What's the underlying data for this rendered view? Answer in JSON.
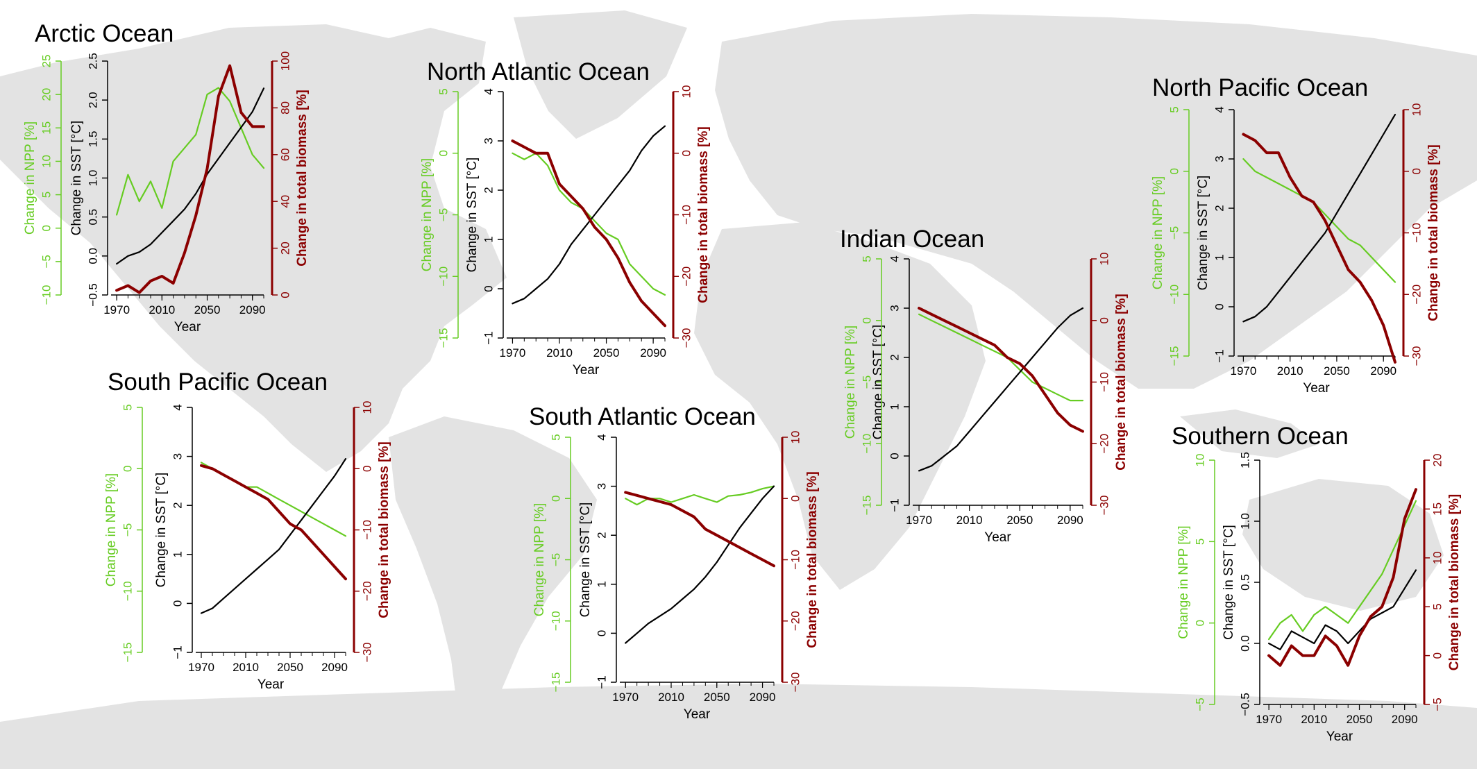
{
  "colors": {
    "npp": "#66cc22",
    "sst": "#000000",
    "biomass": "#8b0000",
    "land": "#e3e3e3"
  },
  "chart_data": [
    {
      "type": "line",
      "title": "Arctic Ocean",
      "xlabel": "Year",
      "xlim": [
        1965,
        2100
      ],
      "xticks": [
        1970,
        2010,
        2050,
        2090
      ],
      "axes": {
        "npp": {
          "label": "Change in NPP [%]",
          "ylim": [
            -10,
            25
          ],
          "ticks": [
            -10,
            -5,
            0,
            5,
            10,
            15,
            20,
            25
          ]
        },
        "sst": {
          "label": "Change in SST [°C]",
          "ylim": [
            -0.5,
            2.5
          ],
          "ticks": [
            -0.5,
            0.0,
            0.5,
            1.0,
            1.5,
            2.0,
            2.5
          ]
        },
        "biomass": {
          "label": "Change in total biomass [%]",
          "ylim": [
            0,
            100
          ],
          "ticks": [
            0,
            20,
            40,
            60,
            80,
            100
          ]
        }
      },
      "series": [
        {
          "axis": "npp",
          "x": [
            1970,
            1980,
            1990,
            2000,
            2010,
            2020,
            2030,
            2040,
            2050,
            2060,
            2070,
            2080,
            2090,
            2100
          ],
          "values": [
            2,
            8,
            4,
            7,
            3,
            10,
            12,
            14,
            20,
            21,
            19,
            15,
            11,
            9
          ]
        },
        {
          "axis": "sst",
          "x": [
            1970,
            1980,
            1990,
            2000,
            2010,
            2020,
            2030,
            2040,
            2050,
            2060,
            2070,
            2080,
            2090,
            2100
          ],
          "values": [
            -0.1,
            0.0,
            0.05,
            0.15,
            0.3,
            0.45,
            0.6,
            0.8,
            1.05,
            1.25,
            1.45,
            1.65,
            1.85,
            2.15
          ]
        },
        {
          "axis": "biomass",
          "x": [
            1970,
            1980,
            1990,
            2000,
            2010,
            2020,
            2030,
            2040,
            2050,
            2060,
            2070,
            2080,
            2090,
            2100
          ],
          "values": [
            2,
            4,
            1,
            6,
            8,
            5,
            18,
            34,
            54,
            85,
            98,
            78,
            72,
            72
          ]
        }
      ]
    },
    {
      "type": "line",
      "title": "North Atlantic Ocean",
      "xlabel": "Year",
      "xlim": [
        1965,
        2100
      ],
      "xticks": [
        1970,
        2010,
        2050,
        2090
      ],
      "axes": {
        "npp": {
          "label": "Change in NPP [%]",
          "ylim": [
            -15,
            5
          ],
          "ticks": [
            -15,
            -10,
            -5,
            0,
            5
          ]
        },
        "sst": {
          "label": "Change in SST [°C]",
          "ylim": [
            -1,
            4
          ],
          "ticks": [
            -1,
            0,
            1,
            2,
            3,
            4
          ]
        },
        "biomass": {
          "label": "Change in total biomass [%]",
          "ylim": [
            -30,
            10
          ],
          "ticks": [
            -30,
            -20,
            -10,
            0,
            10
          ]
        }
      },
      "series": [
        {
          "axis": "npp",
          "x": [
            1970,
            1980,
            1990,
            2000,
            2010,
            2020,
            2030,
            2040,
            2050,
            2060,
            2070,
            2080,
            2090,
            2100
          ],
          "values": [
            0,
            -0.5,
            0,
            -1,
            -3,
            -4,
            -4.5,
            -5.5,
            -6.5,
            -7,
            -9,
            -10,
            -11,
            -11.5
          ]
        },
        {
          "axis": "sst",
          "x": [
            1970,
            1980,
            1990,
            2000,
            2010,
            2020,
            2030,
            2040,
            2050,
            2060,
            2070,
            2080,
            2090,
            2100
          ],
          "values": [
            -0.3,
            -0.2,
            0.0,
            0.2,
            0.5,
            0.9,
            1.2,
            1.5,
            1.8,
            2.1,
            2.4,
            2.8,
            3.1,
            3.3
          ]
        },
        {
          "axis": "biomass",
          "x": [
            1970,
            1980,
            1990,
            2000,
            2010,
            2020,
            2030,
            2040,
            2050,
            2060,
            2070,
            2080,
            2090,
            2100
          ],
          "values": [
            2,
            1,
            0,
            0,
            -5,
            -7,
            -9,
            -12,
            -14,
            -17,
            -21,
            -24,
            -26,
            -28
          ]
        }
      ]
    },
    {
      "type": "line",
      "title": "North Pacific Ocean",
      "xlabel": "Year",
      "xlim": [
        1965,
        2100
      ],
      "xticks": [
        1970,
        2010,
        2050,
        2090
      ],
      "axes": {
        "npp": {
          "label": "Change in NPP [%]",
          "ylim": [
            -15,
            5
          ],
          "ticks": [
            -15,
            -10,
            -5,
            0,
            5
          ]
        },
        "sst": {
          "label": "Change in SST [°C]",
          "ylim": [
            -1,
            4
          ],
          "ticks": [
            -1,
            0,
            1,
            2,
            3,
            4
          ]
        },
        "biomass": {
          "label": "Change in total biomass [%]",
          "ylim": [
            -30,
            10
          ],
          "ticks": [
            -30,
            -20,
            -10,
            0,
            10
          ]
        }
      },
      "series": [
        {
          "axis": "npp",
          "x": [
            1970,
            1980,
            1990,
            2000,
            2010,
            2020,
            2030,
            2040,
            2050,
            2060,
            2070,
            2080,
            2090,
            2100
          ],
          "values": [
            1,
            0,
            -0.5,
            -1,
            -1.5,
            -2,
            -2.5,
            -3.5,
            -4.5,
            -5.5,
            -6,
            -7,
            -8,
            -9
          ]
        },
        {
          "axis": "sst",
          "x": [
            1970,
            1980,
            1990,
            2000,
            2010,
            2020,
            2030,
            2040,
            2050,
            2060,
            2070,
            2080,
            2090,
            2100
          ],
          "values": [
            -0.3,
            -0.2,
            0.0,
            0.3,
            0.6,
            0.9,
            1.2,
            1.5,
            1.9,
            2.3,
            2.7,
            3.1,
            3.5,
            3.9
          ]
        },
        {
          "axis": "biomass",
          "x": [
            1970,
            1980,
            1990,
            2000,
            2010,
            2020,
            2030,
            2040,
            2050,
            2060,
            2070,
            2080,
            2090,
            2100
          ],
          "values": [
            6,
            5,
            3,
            3,
            -1,
            -4,
            -5,
            -8,
            -12,
            -16,
            -18,
            -21,
            -25,
            -31
          ]
        }
      ]
    },
    {
      "type": "line",
      "title": "Indian Ocean",
      "xlabel": "Year",
      "xlim": [
        1965,
        2100
      ],
      "xticks": [
        1970,
        2010,
        2050,
        2090
      ],
      "axes": {
        "npp": {
          "label": "Change in NPP [%]",
          "ylim": [
            -15,
            5
          ],
          "ticks": [
            -15,
            -10,
            -5,
            0,
            5
          ]
        },
        "sst": {
          "label": "Change in SST [°C]",
          "ylim": [
            -1,
            4
          ],
          "ticks": [
            -1,
            0,
            1,
            2,
            3,
            4
          ]
        },
        "biomass": {
          "label": "Change in total biomass [%]",
          "ylim": [
            -30,
            10
          ],
          "ticks": [
            -30,
            -20,
            -10,
            0,
            10
          ]
        }
      },
      "series": [
        {
          "axis": "npp",
          "x": [
            1970,
            1980,
            1990,
            2000,
            2010,
            2020,
            2030,
            2040,
            2050,
            2060,
            2070,
            2080,
            2090,
            2100
          ],
          "values": [
            0.5,
            0,
            -0.5,
            -1,
            -1.5,
            -2,
            -2.5,
            -3,
            -4,
            -5,
            -5.5,
            -6,
            -6.5,
            -6.5
          ]
        },
        {
          "axis": "sst",
          "x": [
            1970,
            1980,
            1990,
            2000,
            2010,
            2020,
            2030,
            2040,
            2050,
            2060,
            2070,
            2080,
            2090,
            2100
          ],
          "values": [
            -0.3,
            -0.2,
            0.0,
            0.2,
            0.5,
            0.8,
            1.1,
            1.4,
            1.7,
            2.0,
            2.3,
            2.6,
            2.85,
            3.0
          ]
        },
        {
          "axis": "biomass",
          "x": [
            1970,
            1980,
            1990,
            2000,
            2010,
            2020,
            2030,
            2040,
            2050,
            2060,
            2070,
            2080,
            2090,
            2100
          ],
          "values": [
            2,
            1,
            0,
            -1,
            -2,
            -3,
            -4,
            -6,
            -7,
            -9,
            -12,
            -15,
            -17,
            -18
          ]
        }
      ]
    },
    {
      "type": "line",
      "title": "South Pacific Ocean",
      "xlabel": "Year",
      "xlim": [
        1965,
        2100
      ],
      "xticks": [
        1970,
        2010,
        2050,
        2090
      ],
      "axes": {
        "npp": {
          "label": "Change in NPP [%]",
          "ylim": [
            -15,
            5
          ],
          "ticks": [
            -15,
            -10,
            -5,
            0,
            5
          ]
        },
        "sst": {
          "label": "Change in SST [°C]",
          "ylim": [
            -1,
            4
          ],
          "ticks": [
            -1,
            0,
            1,
            2,
            3,
            4
          ]
        },
        "biomass": {
          "label": "Change in total biomass [%]",
          "ylim": [
            -30,
            10
          ],
          "ticks": [
            -30,
            -20,
            -10,
            0,
            10
          ]
        }
      },
      "series": [
        {
          "axis": "npp",
          "x": [
            1970,
            1980,
            1990,
            2000,
            2010,
            2020,
            2030,
            2040,
            2050,
            2060,
            2070,
            2080,
            2090,
            2100
          ],
          "values": [
            0.5,
            0,
            -0.5,
            -1,
            -1.5,
            -1.5,
            -2,
            -2.5,
            -3,
            -3.5,
            -4,
            -4.5,
            -5,
            -5.5
          ]
        },
        {
          "axis": "sst",
          "x": [
            1970,
            1980,
            1990,
            2000,
            2010,
            2020,
            2030,
            2040,
            2050,
            2060,
            2070,
            2080,
            2090,
            2100
          ],
          "values": [
            -0.2,
            -0.1,
            0.1,
            0.3,
            0.5,
            0.7,
            0.9,
            1.1,
            1.4,
            1.7,
            2.0,
            2.3,
            2.6,
            2.95
          ]
        },
        {
          "axis": "biomass",
          "x": [
            1970,
            1980,
            1990,
            2000,
            2010,
            2020,
            2030,
            2040,
            2050,
            2060,
            2070,
            2080,
            2090,
            2100
          ],
          "values": [
            0.5,
            0,
            -1,
            -2,
            -3,
            -4,
            -5,
            -7,
            -9,
            -10,
            -12,
            -14,
            -16,
            -18
          ]
        }
      ]
    },
    {
      "type": "line",
      "title": "South Atlantic Ocean",
      "xlabel": "Year",
      "xlim": [
        1965,
        2100
      ],
      "xticks": [
        1970,
        2010,
        2050,
        2090
      ],
      "axes": {
        "npp": {
          "label": "Change in NPP [%]",
          "ylim": [
            -15,
            5
          ],
          "ticks": [
            -15,
            -10,
            -5,
            0,
            5
          ]
        },
        "sst": {
          "label": "Change in SST [°C]",
          "ylim": [
            -1,
            4
          ],
          "ticks": [
            -1,
            0,
            1,
            2,
            3,
            4
          ]
        },
        "biomass": {
          "label": "Change in total biomass [%]",
          "ylim": [
            -30,
            10
          ],
          "ticks": [
            -30,
            -20,
            -10,
            0,
            10
          ]
        }
      },
      "series": [
        {
          "axis": "npp",
          "x": [
            1970,
            1980,
            1990,
            2000,
            2010,
            2020,
            2030,
            2040,
            2050,
            2060,
            2070,
            2080,
            2090,
            2100
          ],
          "values": [
            0,
            -0.5,
            0,
            0,
            -0.3,
            0,
            0.3,
            0,
            -0.3,
            0.2,
            0.3,
            0.5,
            0.8,
            1.0
          ]
        },
        {
          "axis": "sst",
          "x": [
            1970,
            1980,
            1990,
            2000,
            2010,
            2020,
            2030,
            2040,
            2050,
            2060,
            2070,
            2080,
            2090,
            2100
          ],
          "values": [
            -0.2,
            0.0,
            0.2,
            0.35,
            0.5,
            0.7,
            0.9,
            1.15,
            1.45,
            1.8,
            2.15,
            2.45,
            2.75,
            3.0
          ]
        },
        {
          "axis": "biomass",
          "x": [
            1970,
            1980,
            1990,
            2000,
            2010,
            2020,
            2030,
            2040,
            2050,
            2060,
            2070,
            2080,
            2090,
            2100
          ],
          "values": [
            1,
            0.5,
            0,
            -0.5,
            -1,
            -2,
            -3,
            -5,
            -6,
            -7,
            -8,
            -9,
            -10,
            -11
          ]
        }
      ]
    },
    {
      "type": "line",
      "title": "Southern Ocean",
      "xlabel": "Year",
      "xlim": [
        1965,
        2100
      ],
      "xticks": [
        1970,
        2010,
        2050,
        2090
      ],
      "axes": {
        "npp": {
          "label": "Change in NPP [%]",
          "ylim": [
            -5,
            10
          ],
          "ticks": [
            -5,
            0,
            5,
            10
          ]
        },
        "sst": {
          "label": "Change in SST [°C]",
          "ylim": [
            -0.5,
            1.5
          ],
          "ticks": [
            -0.5,
            0.0,
            0.5,
            1.0,
            1.5
          ]
        },
        "biomass": {
          "label": "Change in total biomass [%]",
          "ylim": [
            -5,
            20
          ],
          "ticks": [
            -5,
            0,
            5,
            10,
            15,
            20
          ]
        }
      },
      "series": [
        {
          "axis": "npp",
          "x": [
            1970,
            1980,
            1990,
            2000,
            2010,
            2020,
            2030,
            2040,
            2050,
            2060,
            2070,
            2080,
            2090,
            2100
          ],
          "values": [
            -1,
            0,
            0.5,
            -0.5,
            0.5,
            1,
            0.5,
            0,
            1,
            2,
            3,
            4.5,
            6,
            7.5
          ]
        },
        {
          "axis": "sst",
          "x": [
            1970,
            1980,
            1990,
            2000,
            2010,
            2020,
            2030,
            2040,
            2050,
            2060,
            2070,
            2080,
            2090,
            2100
          ],
          "values": [
            0.0,
            -0.05,
            0.1,
            0.05,
            0.0,
            0.15,
            0.1,
            0.0,
            0.1,
            0.2,
            0.25,
            0.3,
            0.45,
            0.6
          ]
        },
        {
          "axis": "biomass",
          "x": [
            1970,
            1980,
            1990,
            2000,
            2010,
            2020,
            2030,
            2040,
            2050,
            2060,
            2070,
            2080,
            2090,
            2100
          ],
          "values": [
            0,
            -1,
            1,
            0,
            0,
            2,
            1,
            -1,
            2,
            4,
            5,
            8,
            14,
            17
          ]
        }
      ]
    }
  ]
}
